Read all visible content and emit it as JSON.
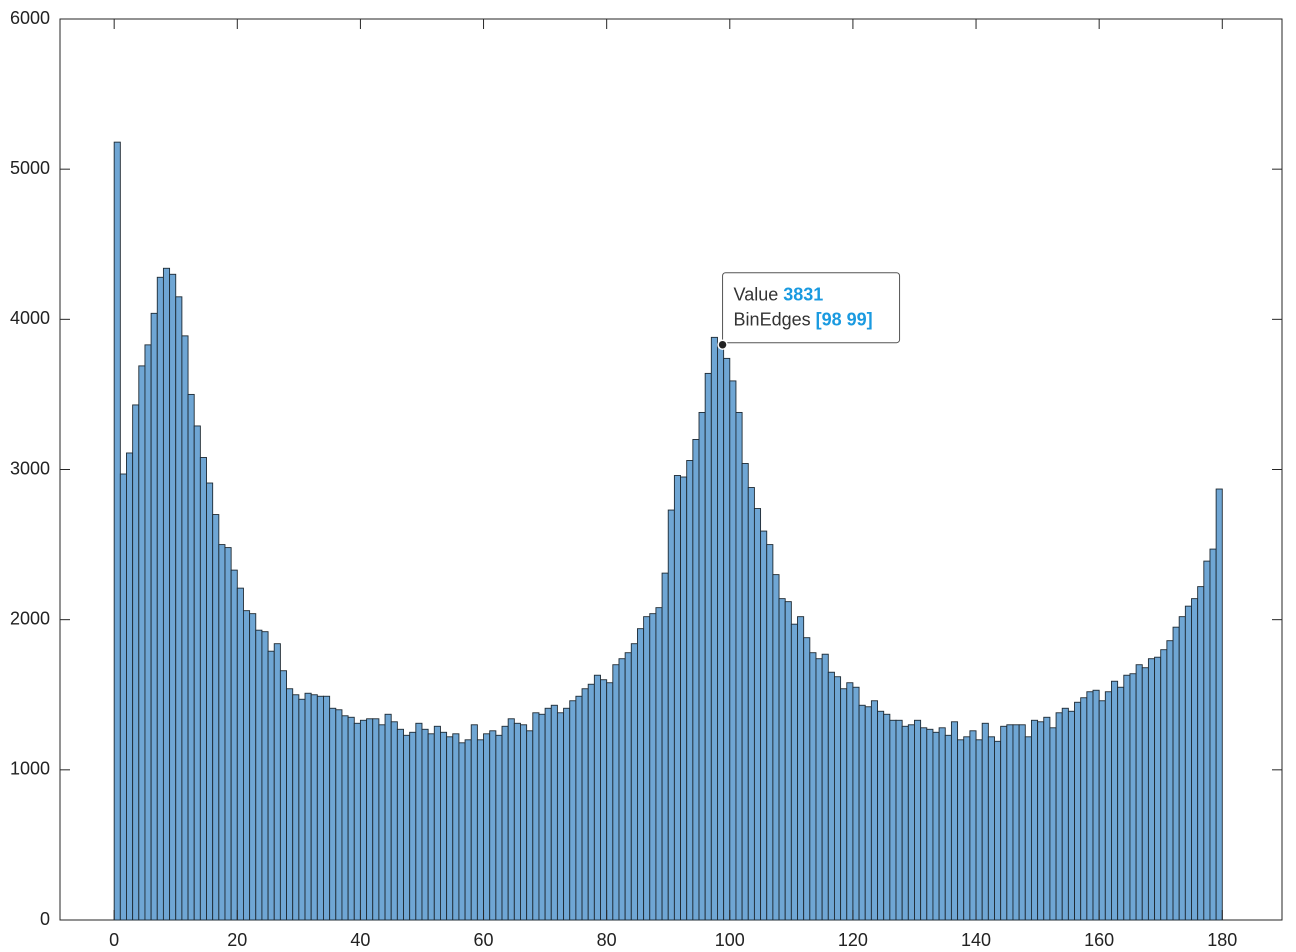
{
  "chart_data": {
    "type": "histogram",
    "bins": [
      0,
      1,
      2,
      3,
      4,
      5,
      6,
      7,
      8,
      9,
      10,
      11,
      12,
      13,
      14,
      15,
      16,
      17,
      18,
      19,
      20,
      21,
      22,
      23,
      24,
      25,
      26,
      27,
      28,
      29,
      30,
      31,
      32,
      33,
      34,
      35,
      36,
      37,
      38,
      39,
      40,
      41,
      42,
      43,
      44,
      45,
      46,
      47,
      48,
      49,
      50,
      51,
      52,
      53,
      54,
      55,
      56,
      57,
      58,
      59,
      60,
      61,
      62,
      63,
      64,
      65,
      66,
      67,
      68,
      69,
      70,
      71,
      72,
      73,
      74,
      75,
      76,
      77,
      78,
      79,
      80,
      81,
      82,
      83,
      84,
      85,
      86,
      87,
      88,
      89,
      90,
      91,
      92,
      93,
      94,
      95,
      96,
      97,
      98,
      99,
      100,
      101,
      102,
      103,
      104,
      105,
      106,
      107,
      108,
      109,
      110,
      111,
      112,
      113,
      114,
      115,
      116,
      117,
      118,
      119,
      120,
      121,
      122,
      123,
      124,
      125,
      126,
      127,
      128,
      129,
      130,
      131,
      132,
      133,
      134,
      135,
      136,
      137,
      138,
      139,
      140,
      141,
      142,
      143,
      144,
      145,
      146,
      147,
      148,
      149,
      150,
      151,
      152,
      153,
      154,
      155,
      156,
      157,
      158,
      159,
      160,
      161,
      162,
      163,
      164,
      165,
      166,
      167,
      168,
      169,
      170,
      171,
      172,
      173,
      174,
      175,
      176,
      177,
      178,
      179,
      180
    ],
    "values": [
      5180,
      2970,
      3110,
      3430,
      3690,
      3830,
      4040,
      4280,
      4340,
      4300,
      4150,
      3890,
      3500,
      3290,
      3080,
      2910,
      2700,
      2500,
      2480,
      2330,
      2210,
      2060,
      2040,
      1930,
      1920,
      1790,
      1840,
      1660,
      1540,
      1500,
      1470,
      1510,
      1500,
      1490,
      1490,
      1410,
      1400,
      1360,
      1350,
      1310,
      1330,
      1340,
      1340,
      1300,
      1370,
      1320,
      1270,
      1230,
      1250,
      1310,
      1270,
      1240,
      1290,
      1250,
      1220,
      1240,
      1180,
      1200,
      1300,
      1200,
      1240,
      1260,
      1230,
      1290,
      1340,
      1310,
      1300,
      1260,
      1380,
      1370,
      1410,
      1430,
      1380,
      1410,
      1460,
      1490,
      1540,
      1570,
      1630,
      1600,
      1580,
      1700,
      1740,
      1780,
      1840,
      1940,
      2020,
      2040,
      2080,
      2310,
      2730,
      2960,
      2950,
      3060,
      3200,
      3380,
      3640,
      3880,
      3831,
      3740,
      3590,
      3380,
      3040,
      2880,
      2740,
      2590,
      2500,
      2300,
      2140,
      2120,
      1970,
      2020,
      1880,
      1780,
      1740,
      1770,
      1650,
      1620,
      1540,
      1580,
      1550,
      1430,
      1420,
      1460,
      1390,
      1370,
      1330,
      1330,
      1290,
      1300,
      1330,
      1280,
      1270,
      1250,
      1280,
      1230,
      1320,
      1200,
      1220,
      1260,
      1200,
      1310,
      1220,
      1190,
      1290,
      1300,
      1300,
      1300,
      1220,
      1330,
      1320,
      1350,
      1280,
      1380,
      1410,
      1390,
      1450,
      1480,
      1520,
      1530,
      1460,
      1520,
      1590,
      1550,
      1630,
      1640,
      1700,
      1680,
      1740,
      1750,
      1800,
      1860,
      1950,
      2020,
      2090,
      2140,
      2220,
      2390,
      2470,
      2870
    ],
    "color": "#6fa6d4",
    "edge_color": "#1e2a33",
    "xlim": [
      -8.8,
      189.7
    ],
    "ylim": [
      0,
      6000
    ],
    "xticks": [
      0,
      20,
      40,
      60,
      80,
      100,
      120,
      140,
      160,
      180
    ],
    "yticks": [
      0,
      1000,
      2000,
      3000,
      4000,
      5000,
      6000
    ],
    "grid": false,
    "tooltip": {
      "value_label": "Value",
      "value": 3831,
      "edges_label": "BinEdges",
      "edges": "[98 99]",
      "bin": 98
    }
  }
}
